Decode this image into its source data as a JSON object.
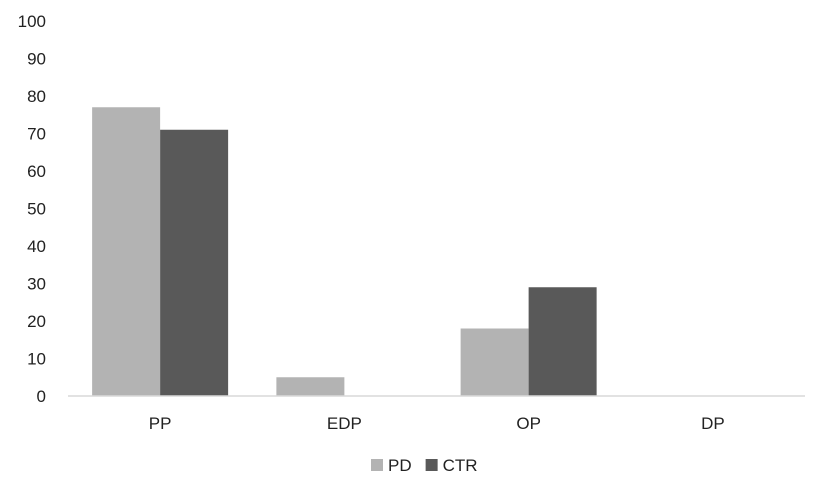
{
  "chart_data": {
    "type": "bar",
    "title": "",
    "xlabel": "",
    "ylabel": "",
    "categories": [
      "PP",
      "EDP",
      "OP",
      "DP"
    ],
    "series": [
      {
        "name": "PD",
        "color": "#b3b3b3",
        "values": [
          77,
          5,
          18,
          0
        ]
      },
      {
        "name": "CTR",
        "color": "#595959",
        "values": [
          71,
          0,
          29,
          0
        ]
      }
    ],
    "ylim": [
      0,
      100
    ],
    "yticks": [
      "0",
      "10",
      "20",
      "30",
      "40",
      "50",
      "60",
      "70",
      "80",
      "90",
      "100"
    ],
    "grid": false,
    "legend_position": "bottom-center"
  }
}
